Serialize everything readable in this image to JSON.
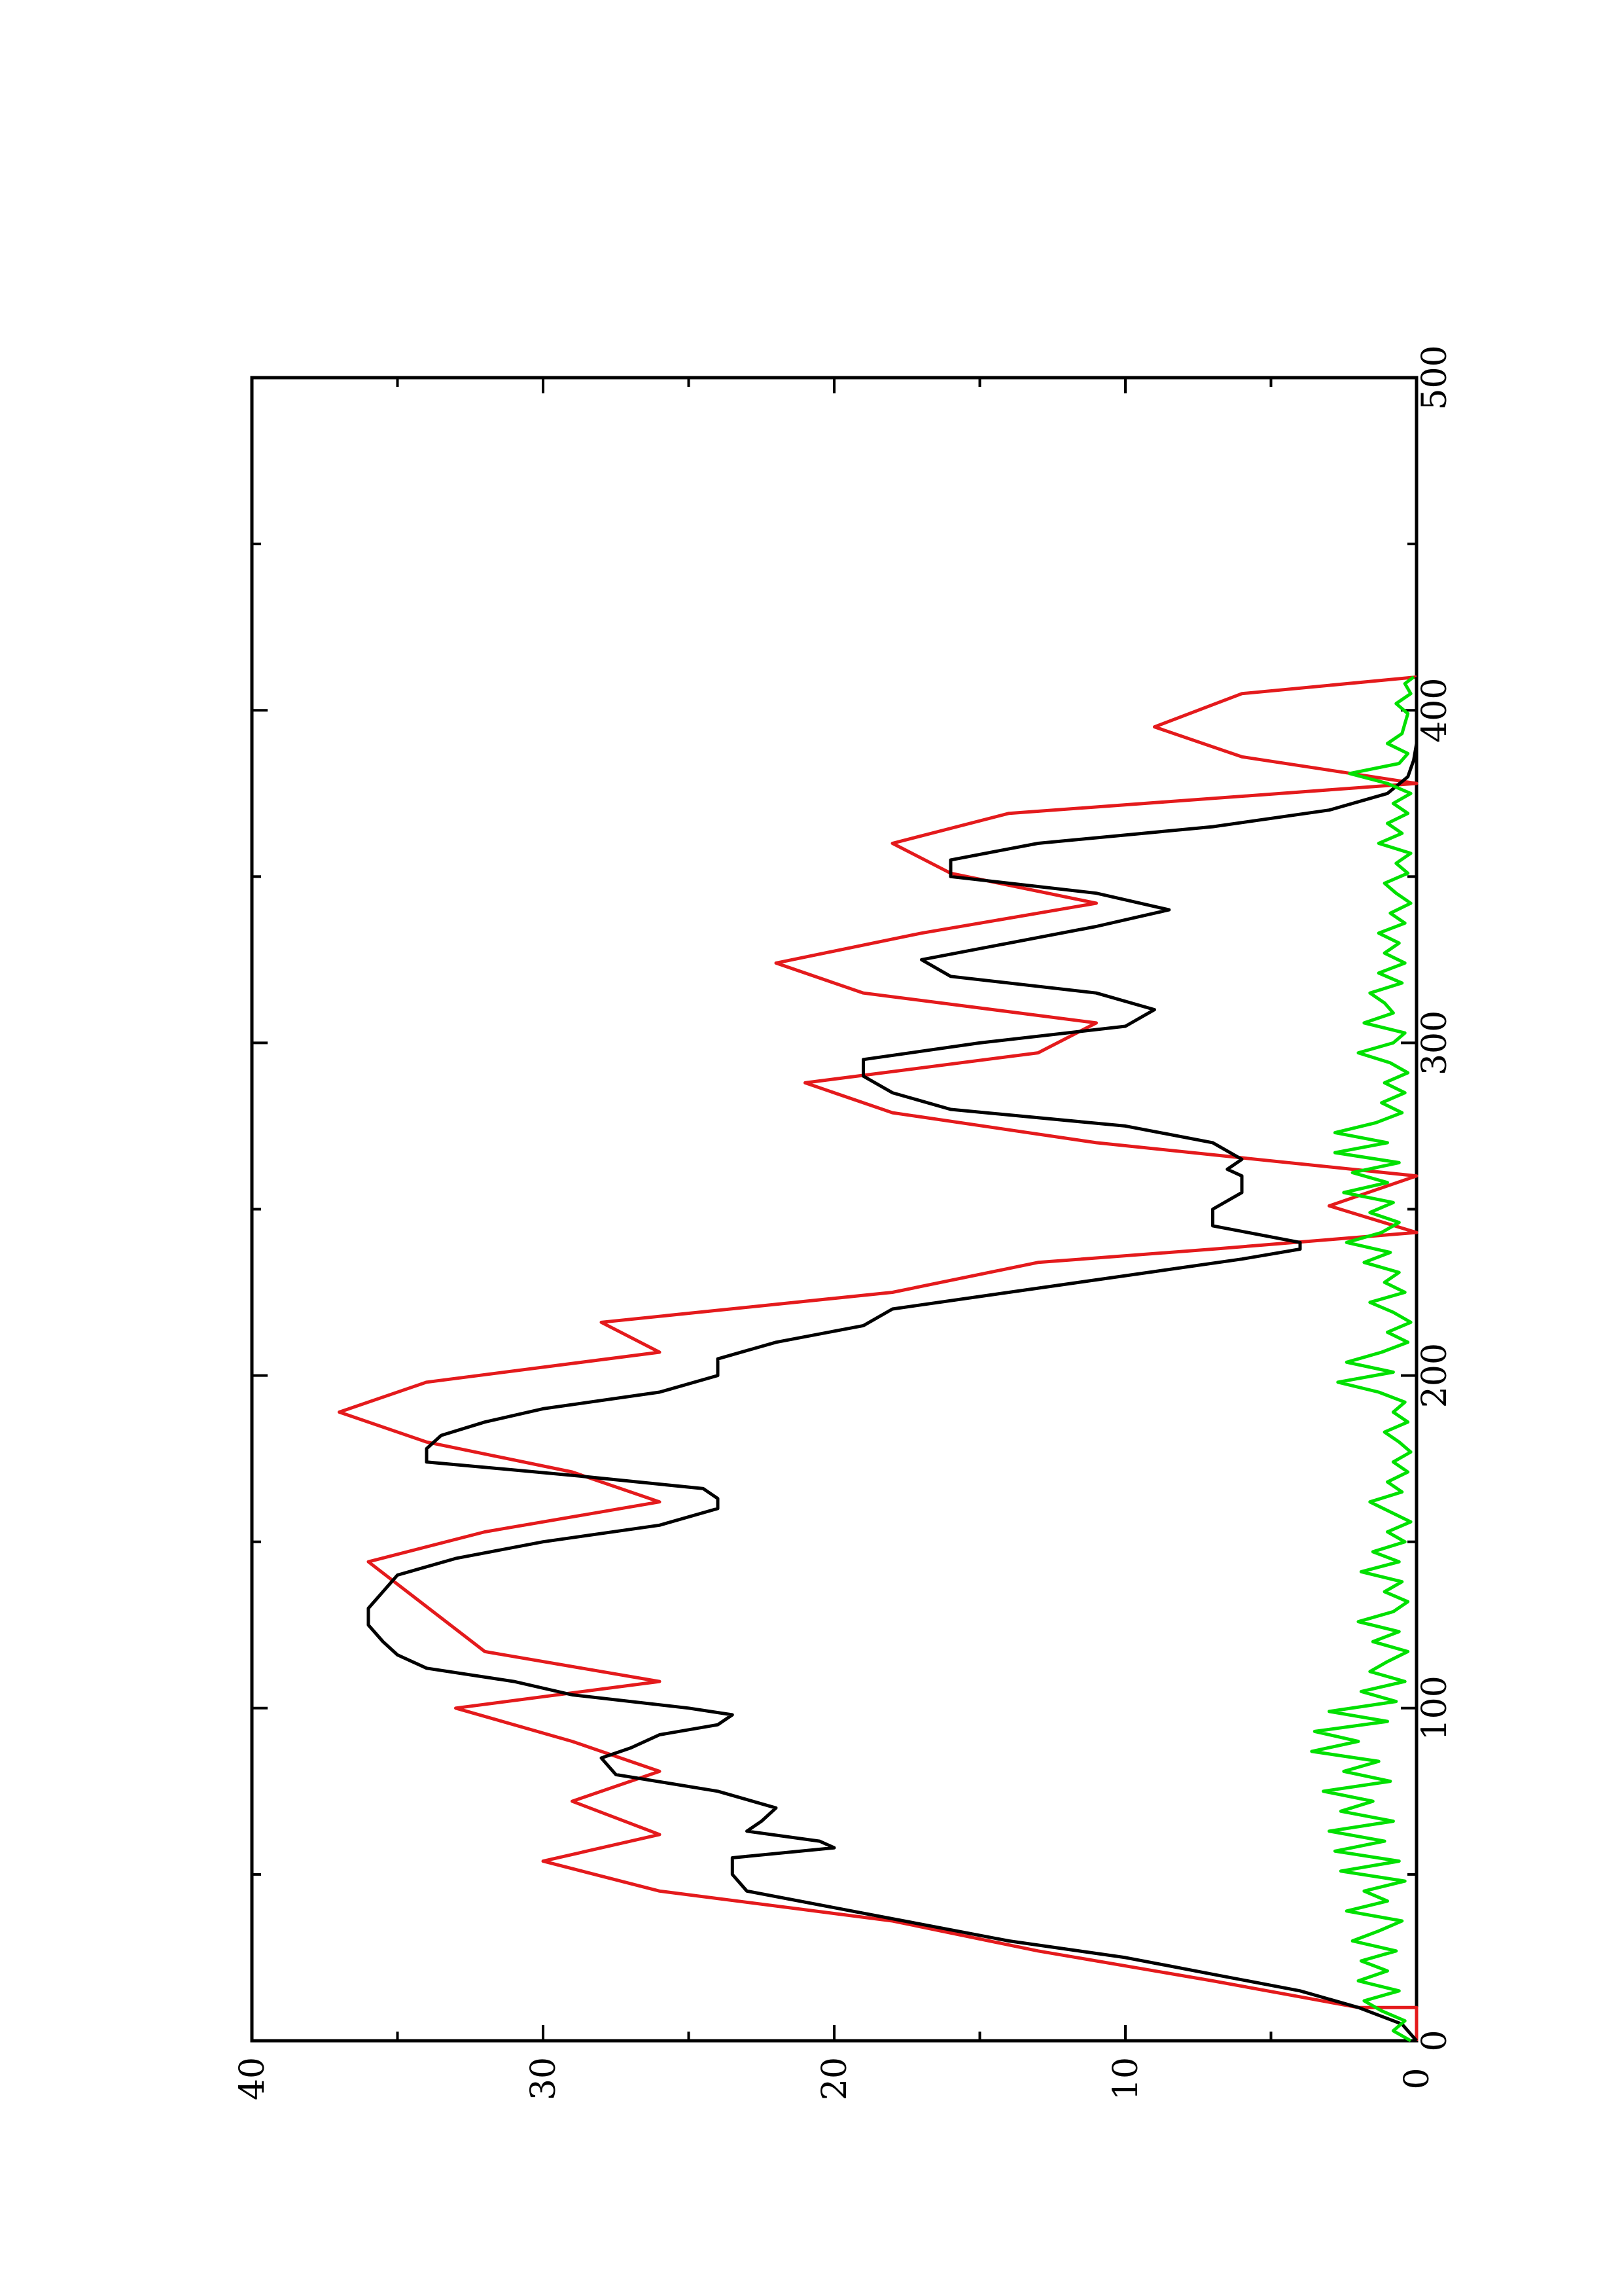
{
  "chart_data": {
    "type": "line",
    "title": "",
    "xlabel": "",
    "ylabel": "",
    "xlim": [
      0,
      500
    ],
    "ylim": [
      0,
      40
    ],
    "x_ticks": [
      "0",
      "100",
      "200",
      "300",
      "400",
      "500"
    ],
    "y_ticks": [
      "0",
      "10",
      "20",
      "30",
      "40"
    ],
    "x_minor_ticks": [
      50,
      150,
      250,
      350,
      450
    ],
    "y_minor_ticks": [
      5,
      15,
      25,
      35
    ],
    "grid": false,
    "legend": "none",
    "orientation": "rotated 90 degrees counter-clockwise on the page",
    "series": [
      {
        "color": "#e41a1c",
        "style": "step",
        "x": [
          0,
          10,
          10,
          18,
          18,
          27,
          27,
          36,
          36,
          45,
          45,
          54,
          54,
          62,
          62,
          72,
          72,
          81,
          81,
          90,
          90,
          100,
          100,
          108,
          108,
          117,
          117,
          144,
          144,
          153,
          153,
          162,
          162,
          171,
          171,
          180,
          180,
          189,
          189,
          198,
          198,
          207,
          207,
          216,
          216,
          225,
          225,
          234,
          234,
          238,
          238,
          243,
          243,
          251,
          251,
          260,
          260,
          270,
          270,
          279,
          279,
          288,
          288,
          297,
          297,
          306,
          306,
          315,
          315,
          324,
          324,
          333,
          333,
          342,
          342,
          351,
          351,
          360,
          360,
          369,
          369,
          378,
          378,
          386,
          386,
          395,
          395,
          405,
          405,
          410
        ],
        "y": [
          0,
          0,
          2,
          7,
          7,
          13,
          13,
          18,
          18,
          26,
          26,
          30,
          30,
          26,
          26,
          29,
          29,
          26,
          26,
          29,
          29,
          33,
          33,
          26,
          26,
          32,
          32,
          36,
          36,
          32,
          32,
          26,
          26,
          29,
          29,
          34,
          34,
          37,
          37,
          34,
          34,
          26,
          26,
          28,
          28,
          18,
          18,
          13,
          13,
          7,
          7,
          0,
          0,
          3,
          3,
          0,
          0,
          11,
          11,
          18,
          18,
          21,
          21,
          13,
          13,
          11,
          11,
          19,
          19,
          22,
          22,
          17,
          17,
          11,
          11,
          16,
          16,
          18,
          18,
          14,
          14,
          0,
          0,
          6,
          6,
          9,
          9,
          6,
          6,
          0
        ]
      },
      {
        "color": "#000000",
        "style": "line",
        "x": [
          0,
          5,
          10,
          15,
          20,
          25,
          30,
          35,
          40,
          45,
          50,
          55,
          58,
          60,
          63,
          66,
          70,
          75,
          80,
          85,
          88,
          92,
          95,
          98,
          100,
          104,
          108,
          112,
          116,
          120,
          125,
          130,
          135,
          140,
          145,
          150,
          155,
          160,
          163,
          166,
          170,
          174,
          178,
          182,
          186,
          190,
          195,
          200,
          205,
          210,
          215,
          220,
          225,
          230,
          235,
          238,
          240,
          245,
          250,
          255,
          260,
          262,
          265,
          270,
          275,
          280,
          285,
          290,
          295,
          300,
          305,
          310,
          315,
          320,
          325,
          330,
          335,
          340,
          345,
          350,
          355,
          360,
          365,
          370,
          375,
          380,
          385,
          390,
          395,
          400,
          405,
          410
        ],
        "y": [
          0,
          0.5,
          2,
          4,
          7,
          10,
          14,
          17,
          20,
          23,
          23.5,
          23.5,
          20,
          20.5,
          23,
          22.5,
          22,
          24,
          27.5,
          28,
          27,
          26,
          24,
          23.5,
          25,
          29,
          31,
          34,
          35,
          35.5,
          36,
          36,
          35.5,
          35,
          33,
          30,
          26,
          24,
          24,
          24.5,
          29,
          34,
          34,
          33.5,
          32,
          30,
          26,
          24,
          24,
          22,
          19,
          18,
          14,
          10,
          6,
          4,
          4,
          7,
          7,
          6,
          6,
          6.5,
          6,
          7,
          10,
          16,
          18,
          19,
          19,
          15,
          10,
          9,
          11,
          16,
          17,
          14,
          11,
          8.5,
          11,
          16,
          16,
          13,
          7,
          3,
          1,
          0.3,
          0.1,
          0,
          0,
          0,
          0,
          0
        ]
      },
      {
        "color": "#00e000",
        "style": "line",
        "x": [
          0,
          3,
          6,
          9,
          12,
          15,
          18,
          21,
          24,
          27,
          30,
          33,
          36,
          39,
          42,
          45,
          48,
          51,
          54,
          57,
          60,
          63,
          66,
          69,
          72,
          75,
          78,
          81,
          84,
          87,
          90,
          93,
          96,
          99,
          102,
          105,
          108,
          111,
          114,
          117,
          120,
          123,
          126,
          129,
          132,
          135,
          138,
          141,
          144,
          147,
          150,
          153,
          156,
          159,
          162,
          165,
          168,
          171,
          174,
          177,
          180,
          183,
          186,
          189,
          192,
          195,
          198,
          201,
          204,
          207,
          210,
          213,
          216,
          219,
          222,
          225,
          228,
          231,
          234,
          237,
          240,
          243,
          246,
          249,
          252,
          255,
          258,
          261,
          264,
          267,
          270,
          273,
          276,
          279,
          282,
          285,
          288,
          291,
          294,
          297,
          300,
          303,
          306,
          309,
          312,
          315,
          318,
          321,
          324,
          327,
          330,
          333,
          336,
          339,
          342,
          345,
          348,
          351,
          354,
          357,
          360,
          363,
          366,
          369,
          372,
          375,
          378,
          381,
          384,
          387,
          390,
          393,
          396,
          399,
          402,
          405,
          408,
          410
        ],
        "y": [
          0.2,
          0.8,
          0.4,
          1.2,
          1.8,
          0.6,
          2.0,
          1.0,
          1.9,
          0.7,
          2.2,
          1.3,
          0.5,
          2.4,
          1.0,
          1.8,
          0.4,
          2.6,
          0.6,
          2.8,
          1.1,
          3.0,
          0.8,
          2.6,
          1.5,
          3.2,
          0.9,
          2.5,
          1.3,
          3.6,
          2.0,
          3.5,
          1.0,
          3.0,
          0.7,
          1.9,
          0.4,
          1.6,
          1.0,
          0.3,
          1.5,
          0.6,
          2.0,
          0.8,
          0.3,
          1.1,
          0.5,
          1.9,
          0.6,
          1.5,
          0.4,
          1.0,
          0.2,
          0.9,
          1.6,
          0.5,
          1.0,
          0.3,
          0.8,
          0.2,
          0.6,
          1.1,
          0.3,
          0.8,
          0.4,
          1.3,
          2.7,
          0.8,
          2.4,
          1.2,
          0.3,
          1.0,
          0.2,
          0.8,
          1.6,
          0.4,
          1.1,
          0.6,
          1.8,
          0.9,
          2.4,
          1.2,
          0.6,
          1.6,
          0.8,
          2.5,
          1.0,
          2.2,
          0.6,
          2.8,
          1.0,
          2.8,
          1.4,
          0.5,
          1.2,
          0.4,
          1.1,
          0.3,
          0.9,
          2.0,
          0.8,
          0.4,
          1.8,
          0.8,
          1.1,
          1.6,
          0.5,
          1.3,
          0.4,
          1.1,
          0.6,
          1.3,
          0.4,
          0.9,
          0.2,
          0.7,
          1.1,
          0.3,
          0.7,
          0.2,
          1.3,
          0.5,
          1.0,
          0.3,
          0.8,
          0.2,
          1.0,
          2.3,
          0.6,
          0.3,
          1.0,
          0.5,
          0.4,
          0.3,
          0.7,
          0.2,
          0.4,
          0.1
        ]
      }
    ]
  }
}
